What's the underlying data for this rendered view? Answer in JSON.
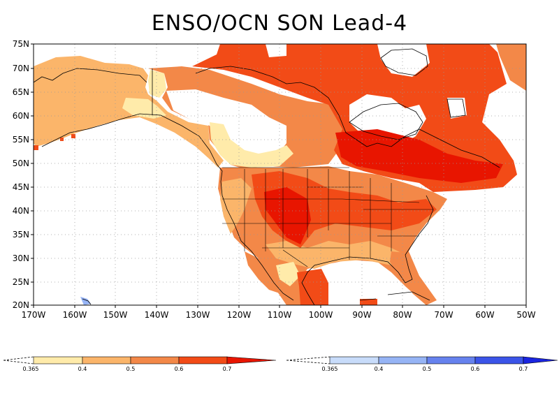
{
  "title": "ENSO/OCN SON Lead-4",
  "lat_labels": [
    "75N",
    "70N",
    "65N",
    "60N",
    "55N",
    "50N",
    "45N",
    "40N",
    "35N",
    "30N",
    "25N",
    "20N"
  ],
  "lon_labels": [
    "170W",
    "160W",
    "150W",
    "140W",
    "130W",
    "120W",
    "110W",
    "100W",
    "90W",
    "80W",
    "70W",
    "60W",
    "50W"
  ],
  "colors": {
    "warm": [
      "#ffebaa",
      "#fbb56a",
      "#f38848",
      "#f24b17",
      "#e81500"
    ],
    "cool": [
      "#c8dcfa",
      "#96b4f5",
      "#6682ee",
      "#3b54e8",
      "#1a25e0"
    ]
  },
  "legend_warm": {
    "ticks": [
      "0.365",
      "0.4",
      "0.5",
      "0.6",
      "0.7"
    ]
  },
  "legend_cool": {
    "ticks": [
      "0.365",
      "0.4",
      "0.5",
      "0.6",
      "0.7"
    ]
  }
}
